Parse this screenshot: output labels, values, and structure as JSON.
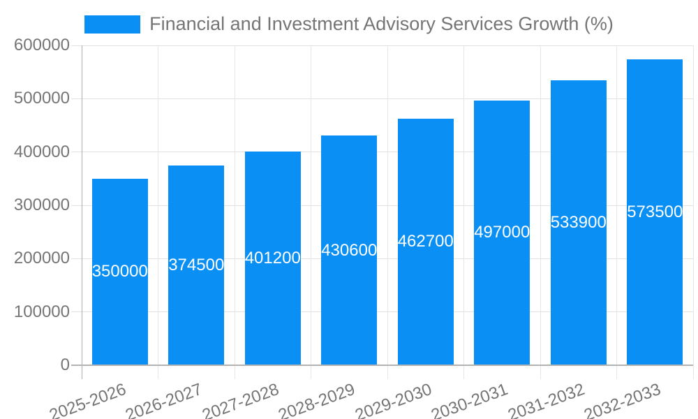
{
  "legend": {
    "label": "Financial and Investment Advisory Services Growth (%)"
  },
  "colors": {
    "bar": "#0a90f5",
    "axis_text": "#757575",
    "gridline": "#e6e6e6",
    "axis_line": "#adadad",
    "value_label": "#ffffff",
    "background": "#ffffff"
  },
  "chart_data": {
    "type": "bar",
    "title": "Financial and Investment Advisory Services Growth (%)",
    "categories": [
      "2025-2026",
      "2026-2027",
      "2027-2028",
      "2028-2029",
      "2029-2030",
      "2030-2031",
      "2031-2032",
      "2032-2033"
    ],
    "values": [
      350000,
      374500,
      401200,
      430600,
      462700,
      497000,
      533900,
      573500
    ],
    "value_labels": [
      "350000",
      "374500",
      "401200",
      "430600",
      "462700",
      "497000",
      "533900",
      "573500"
    ],
    "xlabel": "",
    "ylabel": "",
    "ylim": [
      0,
      600000
    ],
    "yticks": [
      "0",
      "100000",
      "200000",
      "300000",
      "400000",
      "500000",
      "600000"
    ],
    "ytick_values": [
      0,
      100000,
      200000,
      300000,
      400000,
      500000,
      600000
    ],
    "grid": true,
    "legend_position": "top-center",
    "bar_color": "#0a90f5",
    "value_label_position": "inside-middle",
    "x_label_rotation_deg": -20
  }
}
